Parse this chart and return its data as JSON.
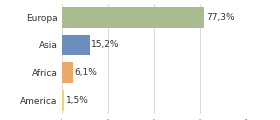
{
  "categories": [
    "Europa",
    "Asia",
    "Africa",
    "America"
  ],
  "values": [
    77.3,
    15.2,
    6.1,
    1.5
  ],
  "labels": [
    "77,3%",
    "15,2%",
    "6,1%",
    "1,5%"
  ],
  "bar_colors": [
    "#a8bc8f",
    "#6b8ebf",
    "#e8a96a",
    "#e8d870"
  ],
  "background_color": "#ffffff",
  "xlim": [
    0,
    100
  ],
  "bar_height": 0.75,
  "label_fontsize": 6.5,
  "tick_fontsize": 6.5,
  "grid_color": "#cccccc",
  "grid_ticks": [
    0,
    25,
    50,
    75,
    100
  ]
}
